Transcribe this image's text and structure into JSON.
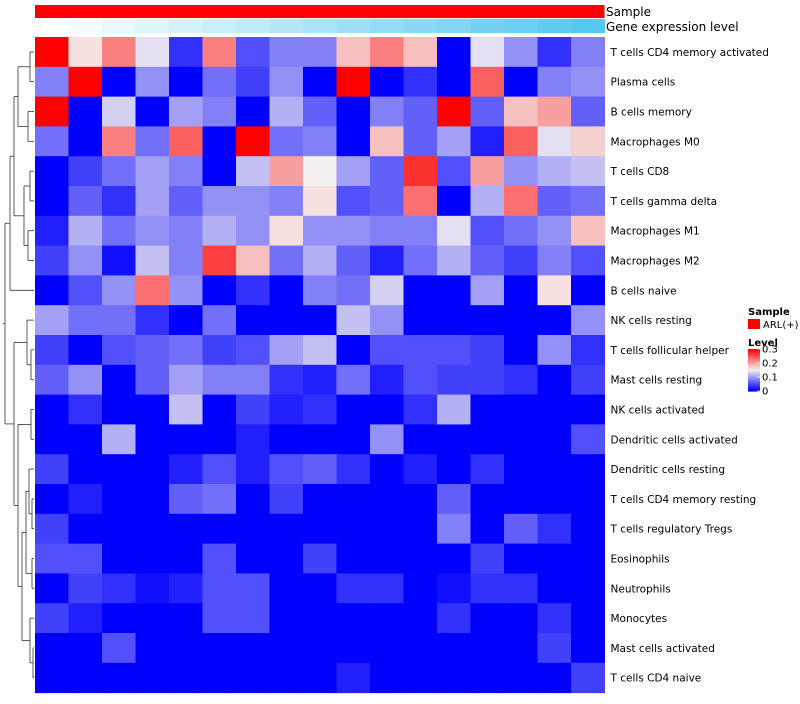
{
  "chart_data": {
    "type": "heatmap",
    "annotation_tracks": [
      "Sample",
      "Gene expression level"
    ],
    "rows": [
      "T cells CD4 memory activated",
      "Plasma cells",
      "B cells memory",
      "Macrophages M0",
      "T cells CD8",
      "T cells gamma delta",
      "Macrophages M1",
      "Macrophages M2",
      "B cells naive",
      "NK cells resting",
      "T cells follicular helper",
      "Mast cells resting",
      "NK cells activated",
      "Dendritic cells activated",
      "Dendritic cells resting",
      "T cells CD4 memory resting",
      "T cells regulatory  Tregs",
      "Eosinophils",
      "Neutrophils",
      "Monocytes",
      "Mast cells activated",
      "T cells CD4 naive"
    ],
    "n_samples": 17,
    "values": [
      [
        0.3,
        0.16,
        0.22,
        0.14,
        0.03,
        0.22,
        0.05,
        0.08,
        0.08,
        0.18,
        0.22,
        0.18,
        0.0,
        0.14,
        0.09,
        0.03,
        0.08
      ],
      [
        0.08,
        0.3,
        0.0,
        0.09,
        0.0,
        0.07,
        0.04,
        0.09,
        0.0,
        0.3,
        0.0,
        0.03,
        0.0,
        0.24,
        0.0,
        0.08,
        0.09
      ],
      [
        0.3,
        0.0,
        0.13,
        0.0,
        0.1,
        0.08,
        0.0,
        0.11,
        0.06,
        0.0,
        0.08,
        0.06,
        0.3,
        0.06,
        0.18,
        0.2,
        0.06
      ],
      [
        0.07,
        0.0,
        0.22,
        0.07,
        0.24,
        0.0,
        0.3,
        0.07,
        0.08,
        0.0,
        0.18,
        0.06,
        0.1,
        0.02,
        0.24,
        0.14,
        0.17
      ],
      [
        0.0,
        0.04,
        0.07,
        0.1,
        0.08,
        0.0,
        0.12,
        0.2,
        0.15,
        0.1,
        0.06,
        0.27,
        0.05,
        0.2,
        0.09,
        0.11,
        0.12
      ],
      [
        0.0,
        0.06,
        0.03,
        0.1,
        0.06,
        0.09,
        0.09,
        0.08,
        0.16,
        0.05,
        0.06,
        0.23,
        0.0,
        0.11,
        0.23,
        0.06,
        0.07
      ],
      [
        0.02,
        0.11,
        0.07,
        0.09,
        0.08,
        0.11,
        0.09,
        0.16,
        0.09,
        0.09,
        0.08,
        0.08,
        0.14,
        0.05,
        0.07,
        0.09,
        0.18
      ],
      [
        0.04,
        0.09,
        0.01,
        0.12,
        0.08,
        0.26,
        0.18,
        0.07,
        0.11,
        0.06,
        0.02,
        0.07,
        0.11,
        0.06,
        0.04,
        0.08,
        0.05
      ],
      [
        0.0,
        0.05,
        0.09,
        0.23,
        0.09,
        0.0,
        0.03,
        0.0,
        0.08,
        0.07,
        0.13,
        0.0,
        0.0,
        0.1,
        0.0,
        0.16,
        0.0
      ],
      [
        0.1,
        0.07,
        0.07,
        0.03,
        0.0,
        0.07,
        0.0,
        0.0,
        0.0,
        0.12,
        0.09,
        0.0,
        0.0,
        0.0,
        0.0,
        0.0,
        0.09
      ],
      [
        0.04,
        0.0,
        0.05,
        0.06,
        0.07,
        0.04,
        0.05,
        0.1,
        0.12,
        0.0,
        0.05,
        0.05,
        0.05,
        0.04,
        0.0,
        0.09,
        0.03
      ],
      [
        0.06,
        0.09,
        0.0,
        0.06,
        0.1,
        0.08,
        0.08,
        0.03,
        0.02,
        0.07,
        0.02,
        0.05,
        0.04,
        0.04,
        0.03,
        0.0,
        0.04
      ],
      [
        0.0,
        0.03,
        0.0,
        0.0,
        0.12,
        0.0,
        0.04,
        0.02,
        0.03,
        0.0,
        0.0,
        0.03,
        0.11,
        0.0,
        0.0,
        0.0,
        0.0
      ],
      [
        0.0,
        0.0,
        0.11,
        0.0,
        0.0,
        0.0,
        0.02,
        0.0,
        0.0,
        0.0,
        0.09,
        0.0,
        0.0,
        0.0,
        0.0,
        0.0,
        0.05
      ],
      [
        0.04,
        0.0,
        0.0,
        0.0,
        0.02,
        0.05,
        0.02,
        0.05,
        0.06,
        0.03,
        0.0,
        0.02,
        0.0,
        0.03,
        0.0,
        0.0,
        0.0
      ],
      [
        0.0,
        0.02,
        0.0,
        0.0,
        0.06,
        0.07,
        0.0,
        0.04,
        0.0,
        0.0,
        0.0,
        0.0,
        0.06,
        0.0,
        0.0,
        0.0,
        0.0
      ],
      [
        0.04,
        0.0,
        0.0,
        0.0,
        0.0,
        0.0,
        0.0,
        0.0,
        0.0,
        0.0,
        0.0,
        0.0,
        0.08,
        0.0,
        0.06,
        0.03,
        0.0
      ],
      [
        0.05,
        0.05,
        0.0,
        0.0,
        0.0,
        0.05,
        0.0,
        0.0,
        0.04,
        0.0,
        0.0,
        0.0,
        0.0,
        0.04,
        0.0,
        0.0,
        0.0
      ],
      [
        0.0,
        0.04,
        0.03,
        0.01,
        0.02,
        0.05,
        0.05,
        0.0,
        0.0,
        0.03,
        0.03,
        0.0,
        0.01,
        0.03,
        0.03,
        0.0,
        0.0
      ],
      [
        0.04,
        0.02,
        0.0,
        0.0,
        0.0,
        0.05,
        0.05,
        0.0,
        0.0,
        0.0,
        0.0,
        0.0,
        0.03,
        0.0,
        0.0,
        0.03,
        0.0
      ],
      [
        0.0,
        0.0,
        0.05,
        0.0,
        0.0,
        0.0,
        0.0,
        0.0,
        0.0,
        0.0,
        0.0,
        0.0,
        0.0,
        0.0,
        0.0,
        0.04,
        0.0
      ],
      [
        0.0,
        0.0,
        0.0,
        0.0,
        0.0,
        0.0,
        0.0,
        0.0,
        0.0,
        0.02,
        0.0,
        0.0,
        0.0,
        0.0,
        0.0,
        0.0,
        0.04
      ]
    ],
    "color_scale": {
      "min": 0,
      "mid": 0.15,
      "max": 0.3,
      "low_color": "#0000ff",
      "mid_color": "#f5f0f0",
      "high_color": "#ff0000"
    },
    "gene_expression_gradient": {
      "from": "#ffffff",
      "to": "#55c8f0"
    },
    "legend": {
      "sample_title": "Sample",
      "sample_entry": "ARL(+)",
      "sample_color": "#ff0000",
      "level_title": "Level",
      "level_ticks": [
        "0.3",
        "0.2",
        "0.1",
        "0"
      ],
      "level_tick_values": [
        0.3,
        0.2,
        0.1,
        0
      ]
    },
    "dendrogram": "row clustering (left)"
  }
}
